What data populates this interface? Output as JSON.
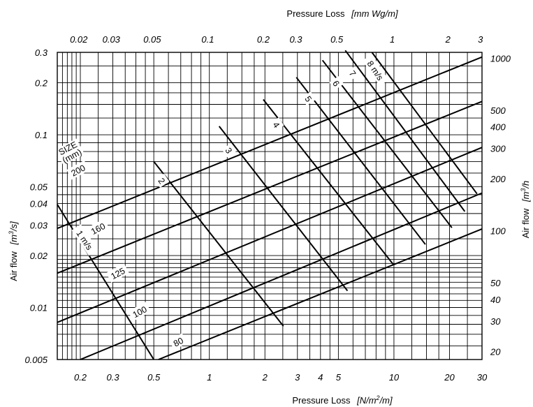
{
  "chart_data": {
    "type": "line",
    "title": "",
    "axes": {
      "x_bottom": {
        "label": "Pressure Loss",
        "unit_text": "[N/m",
        "unit_sup": "2",
        "unit_tail": "/m]",
        "scale": "log",
        "range": [
          0.15,
          30
        ],
        "ticks": [
          {
            "v": 0.2,
            "label": "0.2"
          },
          {
            "v": 0.3,
            "label": "0.3"
          },
          {
            "v": 0.5,
            "label": "0.5"
          },
          {
            "v": 1,
            "label": "1"
          },
          {
            "v": 2,
            "label": "2"
          },
          {
            "v": 3,
            "label": "3"
          },
          {
            "v": 4,
            "label": "4"
          },
          {
            "v": 5,
            "label": "5"
          },
          {
            "v": 10,
            "label": "10"
          },
          {
            "v": 20,
            "label": "20"
          },
          {
            "v": 30,
            "label": "30"
          }
        ]
      },
      "x_top": {
        "label": "Pressure Loss",
        "unit_text": "[mm Wg/m]",
        "scale": "log",
        "range": [
          0.0153,
          3.06
        ],
        "ticks": [
          {
            "v": 0.02,
            "label": "0.02"
          },
          {
            "v": 0.03,
            "label": "0.03"
          },
          {
            "v": 0.05,
            "label": "0.05"
          },
          {
            "v": 0.1,
            "label": "0.1"
          },
          {
            "v": 0.2,
            "label": "0.2"
          },
          {
            "v": 0.3,
            "label": "0.3"
          },
          {
            "v": 0.5,
            "label": "0.5"
          },
          {
            "v": 1,
            "label": "1"
          },
          {
            "v": 2,
            "label": "2"
          },
          {
            "v": 3,
            "label": "3"
          }
        ]
      },
      "y_left": {
        "label": "Air flow",
        "unit_text": "[m",
        "unit_sup": "3",
        "unit_tail": "/s]",
        "scale": "log",
        "range": [
          0.005,
          0.3
        ],
        "ticks": [
          {
            "v": 0.005,
            "label": "0.005"
          },
          {
            "v": 0.01,
            "label": "0.01"
          },
          {
            "v": 0.02,
            "label": "0.02"
          },
          {
            "v": 0.03,
            "label": "0.03"
          },
          {
            "v": 0.04,
            "label": "0.04"
          },
          {
            "v": 0.05,
            "label": "0.05"
          },
          {
            "v": 0.1,
            "label": "0.1"
          },
          {
            "v": 0.2,
            "label": "0.2"
          },
          {
            "v": 0.3,
            "label": "0.3"
          }
        ]
      },
      "y_right": {
        "label": "Air flow",
        "unit_text": "[m",
        "unit_sup": "3",
        "unit_tail": "/h",
        "scale": "log",
        "range": [
          18,
          1080
        ],
        "ticks": [
          {
            "v": 20,
            "label": "20"
          },
          {
            "v": 30,
            "label": "30"
          },
          {
            "v": 40,
            "label": "40"
          },
          {
            "v": 50,
            "label": "50"
          },
          {
            "v": 100,
            "label": "100"
          },
          {
            "v": 200,
            "label": "200"
          },
          {
            "v": 300,
            "label": "300"
          },
          {
            "v": 400,
            "label": "400"
          },
          {
            "v": 500,
            "label": "500"
          },
          {
            "v": 1000,
            "label": "1000"
          }
        ]
      }
    },
    "grid": true,
    "grid_x": [
      0.15,
      0.16,
      0.17,
      0.18,
      0.19,
      0.2,
      0.25,
      0.3,
      0.35,
      0.4,
      0.45,
      0.5,
      0.6,
      0.7,
      0.8,
      0.9,
      1,
      1.25,
      1.5,
      1.75,
      2,
      2.5,
      3,
      3.5,
      4,
      4.5,
      5,
      6,
      7,
      8,
      9,
      10,
      12.5,
      15,
      17.5,
      20,
      25,
      30
    ],
    "grid_y": [
      0.005,
      0.006,
      0.007,
      0.008,
      0.009,
      0.01,
      0.011,
      0.012,
      0.013,
      0.014,
      0.015,
      0.016,
      0.017,
      0.018,
      0.019,
      0.02,
      0.025,
      0.03,
      0.035,
      0.04,
      0.045,
      0.05,
      0.06,
      0.07,
      0.08,
      0.09,
      0.1,
      0.125,
      0.15,
      0.175,
      0.2,
      0.25,
      0.3
    ],
    "size_series": [
      {
        "name": "200",
        "x": [
          0.15,
          30
        ],
        "y": [
          0.0287,
          0.282
        ]
      },
      {
        "name": "160",
        "x": [
          0.15,
          30
        ],
        "y": [
          0.0158,
          0.156
        ]
      },
      {
        "name": "125",
        "x": [
          0.15,
          30
        ],
        "y": [
          0.0082,
          0.0845
        ]
      },
      {
        "name": "100",
        "x": [
          0.2,
          30
        ],
        "y": [
          0.005,
          0.046
        ]
      },
      {
        "name": "80",
        "x": [
          0.53,
          30
        ],
        "y": [
          0.005,
          0.0285
        ]
      }
    ],
    "velocity_series": [
      {
        "name": "1 m/s",
        "x": [
          0.15,
          0.5
        ],
        "y": [
          0.0395,
          0.005
        ]
      },
      {
        "name": "2",
        "x": [
          0.5,
          2.52
        ],
        "y": [
          0.07,
          0.0078
        ]
      },
      {
        "name": "3",
        "x": [
          1.13,
          5.6
        ],
        "y": [
          0.112,
          0.0125
        ]
      },
      {
        "name": "4",
        "x": [
          1.96,
          9.9
        ],
        "y": [
          0.16,
          0.0178
        ]
      },
      {
        "name": "5",
        "x": [
          2.96,
          14.8
        ],
        "y": [
          0.215,
          0.0232
        ]
      },
      {
        "name": "6",
        "x": [
          4.1,
          20.6
        ],
        "y": [
          0.27,
          0.029
        ]
      },
      {
        "name": "7",
        "x": [
          5.45,
          24.2
        ],
        "y": [
          0.308,
          0.036
        ]
      },
      {
        "name": "8 m/s",
        "x": [
          7.6,
          28.2
        ],
        "y": [
          0.3,
          0.0455
        ]
      }
    ],
    "annotations": {
      "size_header": [
        "SIZE",
        "(mm)"
      ],
      "size_labels": [
        {
          "text": "200",
          "x": 0.195,
          "y": 0.062,
          "angle": -28
        },
        {
          "text": "160",
          "x": 0.25,
          "y": 0.0285,
          "angle": -28
        },
        {
          "text": "125",
          "x": 0.32,
          "y": 0.0157,
          "angle": -28
        },
        {
          "text": "100",
          "x": 0.42,
          "y": 0.0094,
          "angle": -28
        },
        {
          "text": "80",
          "x": 0.68,
          "y": 0.0063,
          "angle": -28
        }
      ],
      "velocity_labels": [
        {
          "text": "1 m/s",
          "x": 0.21,
          "y": 0.0245,
          "angle": 56
        },
        {
          "text": "2",
          "x": 0.55,
          "y": 0.054,
          "angle": 56
        },
        {
          "text": "3",
          "x": 1.27,
          "y": 0.081,
          "angle": 56
        },
        {
          "text": "4",
          "x": 2.3,
          "y": 0.114,
          "angle": 56
        },
        {
          "text": "5",
          "x": 3.43,
          "y": 0.161,
          "angle": 56
        },
        {
          "text": "6",
          "x": 4.85,
          "y": 0.198,
          "angle": 56
        },
        {
          "text": "7",
          "x": 5.95,
          "y": 0.226,
          "angle": 56
        },
        {
          "text": "8 m/s",
          "x": 7.9,
          "y": 0.235,
          "angle": 56
        }
      ]
    },
    "legend": "none"
  }
}
